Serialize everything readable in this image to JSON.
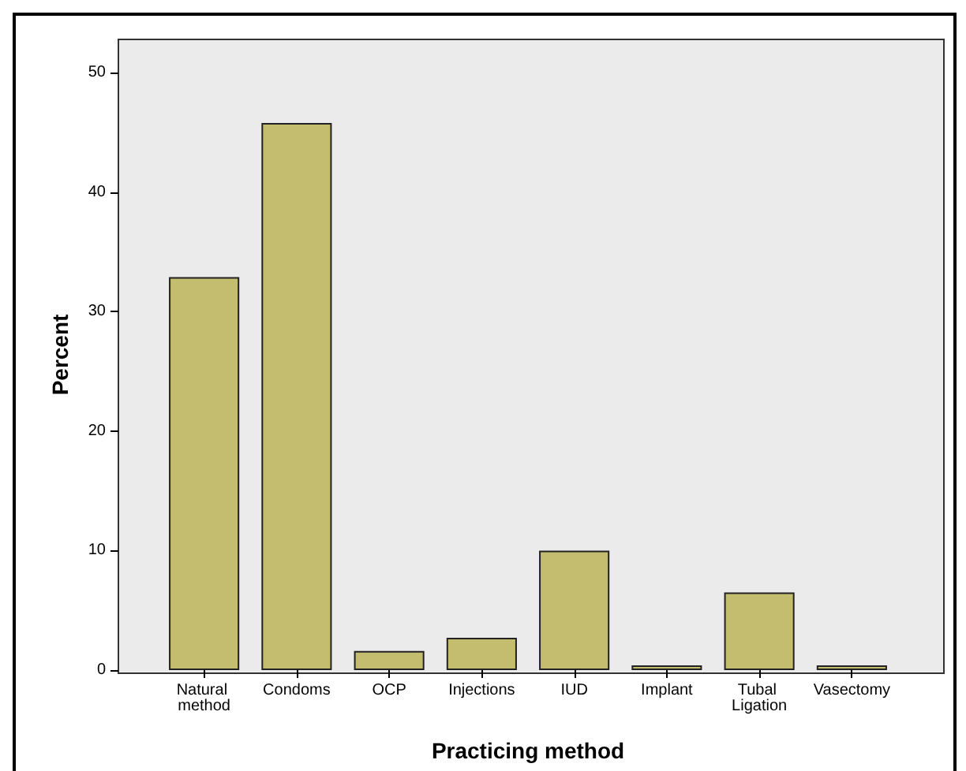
{
  "chart_data": {
    "type": "bar",
    "xlabel": "Practicing method",
    "ylabel": "Percent",
    "categories": [
      "Natural method",
      "Condoms",
      "OCP",
      "Injections",
      "IUD",
      "Implant",
      "Tubal Ligation",
      "Vasectomy"
    ],
    "values": [
      32.9,
      45.8,
      1.6,
      2.7,
      10.0,
      0.4,
      6.5,
      0.4
    ],
    "color": "#c4bd70",
    "ylim": [
      0,
      52.8
    ],
    "yticks": [
      0,
      10,
      20,
      30,
      40,
      50
    ],
    "grid": false
  }
}
